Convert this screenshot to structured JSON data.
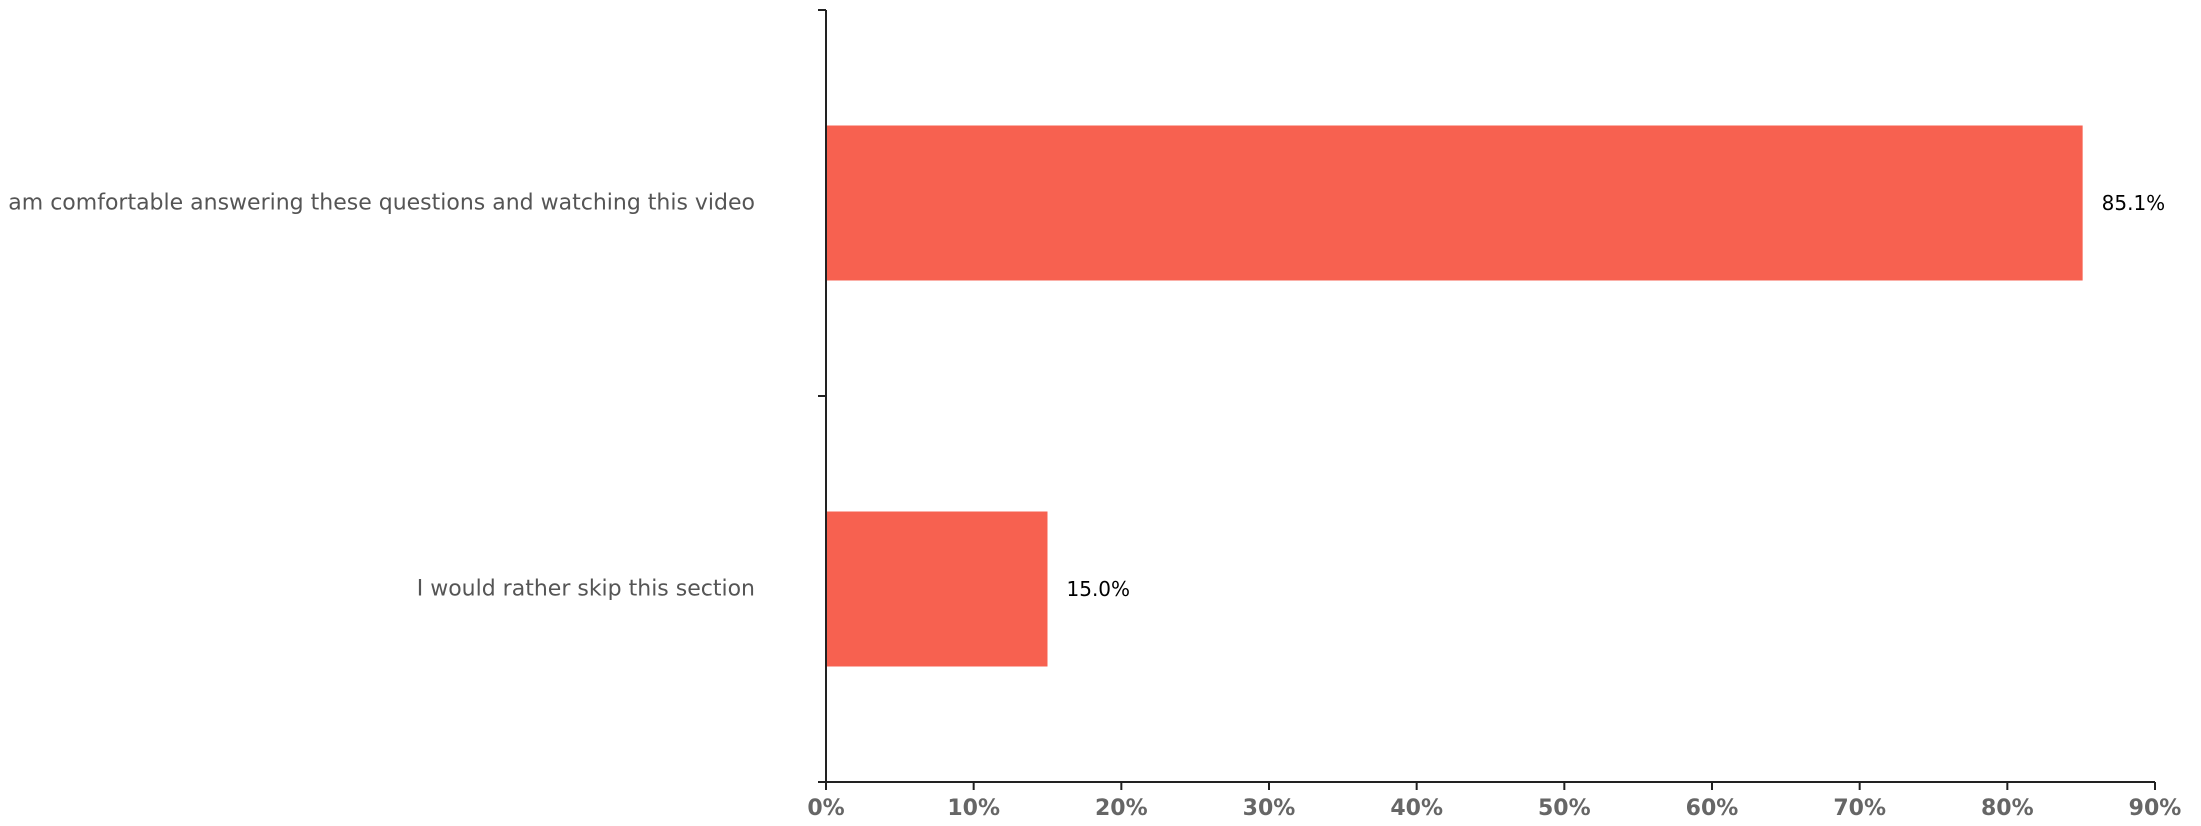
{
  "chart_data": {
    "type": "bar",
    "orientation": "horizontal",
    "categories": [
      "I am comfortable answering these questions and watching this video",
      "I would rather skip this section"
    ],
    "values": [
      85.1,
      15.0
    ],
    "data_labels": [
      "85.1%",
      "15.0%"
    ],
    "xlim": [
      0,
      90
    ],
    "x_ticks": [
      0,
      10,
      20,
      30,
      40,
      50,
      60,
      70,
      80,
      90
    ],
    "x_tick_labels": [
      "0%",
      "10%",
      "20%",
      "30%",
      "40%",
      "50%",
      "60%",
      "70%",
      "80%",
      "90%"
    ],
    "grid": false,
    "legend": "none",
    "bar_color": "#f76150"
  }
}
